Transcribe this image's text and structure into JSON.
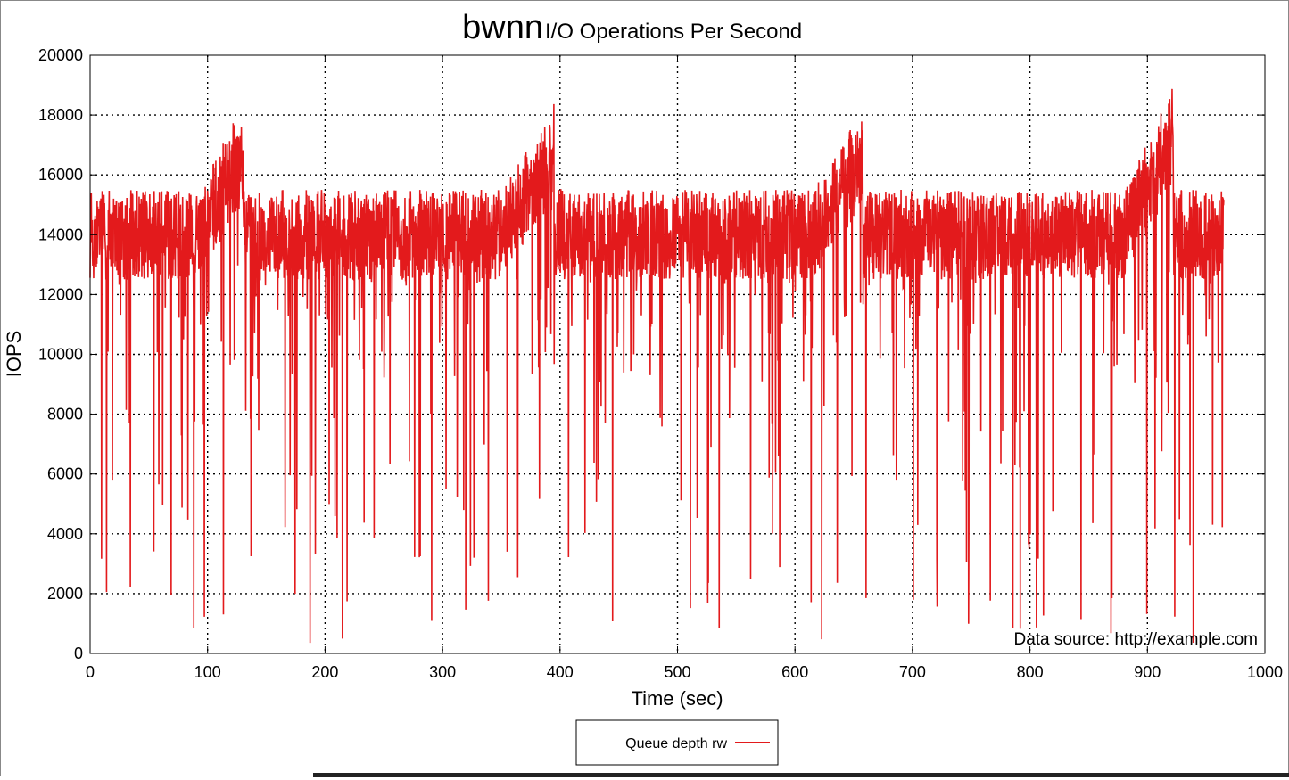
{
  "chart_data": {
    "type": "line",
    "title": {
      "main": "bwnn",
      "sub": "I/O Operations Per Second"
    },
    "xlabel": "Time (sec)",
    "ylabel": "IOPS",
    "xlim": [
      0,
      1000
    ],
    "ylim": [
      0,
      20000
    ],
    "xticks": [
      0,
      100,
      200,
      300,
      400,
      500,
      600,
      700,
      800,
      900,
      1000
    ],
    "yticks": [
      0,
      2000,
      4000,
      6000,
      8000,
      10000,
      12000,
      14000,
      16000,
      18000,
      20000
    ],
    "grid": true,
    "legend_position": "bottom-center",
    "annotation": "Data source: http://example.com",
    "series": [
      {
        "name": "Queue depth rw",
        "color": "#e31a1c",
        "x_range": [
          0,
          965
        ],
        "baseline_iops": 14000,
        "noise_band": [
          12500,
          15500
        ],
        "ramps": [
          {
            "start": 90,
            "end": 130,
            "peak": 18600
          },
          {
            "start": 350,
            "end": 395,
            "peak": 18500
          },
          {
            "start": 615,
            "end": 658,
            "peak": 18500
          },
          {
            "start": 880,
            "end": 922,
            "peak": 19200
          }
        ],
        "min_dip": 350
      }
    ]
  }
}
